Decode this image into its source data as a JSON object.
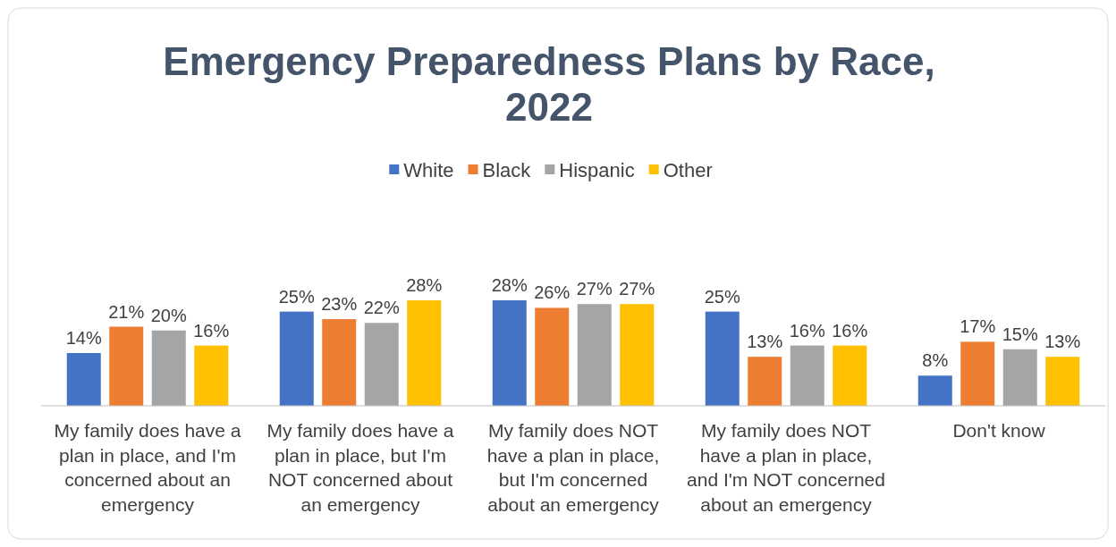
{
  "chart_data": {
    "type": "bar",
    "title": "Emergency Preparedness Plans by Race, 2022",
    "categories": [
      "My family does have a plan in place, and I'm concerned about an emergency",
      "My family does have a plan in place, but I'm NOT concerned about an emergency",
      "My family does NOT have a plan in place, but I'm concerned about an emergency",
      "My family does NOT have a plan in place, and I'm NOT concerned about an emergency",
      "Don't know"
    ],
    "series": [
      {
        "name": "White",
        "color": "#4472c4",
        "values": [
          14,
          25,
          28,
          25,
          8
        ],
        "value_labels": [
          "14%",
          "25%",
          "28%",
          "25%",
          "8%"
        ]
      },
      {
        "name": "Black",
        "color": "#ed7d31",
        "values": [
          21,
          23,
          26,
          13,
          17
        ],
        "value_labels": [
          "21%",
          "23%",
          "26%",
          "13%",
          "17%"
        ]
      },
      {
        "name": "Hispanic",
        "color": "#a5a5a5",
        "values": [
          20,
          22,
          27,
          16,
          15
        ],
        "value_labels": [
          "20%",
          "22%",
          "27%",
          "16%",
          "15%"
        ]
      },
      {
        "name": "Other",
        "color": "#ffc000",
        "values": [
          16,
          28,
          27,
          16,
          13
        ],
        "value_labels": [
          "16%",
          "28%",
          "27%",
          "16%",
          "13%"
        ]
      }
    ],
    "legend": "top",
    "grid": false
  }
}
